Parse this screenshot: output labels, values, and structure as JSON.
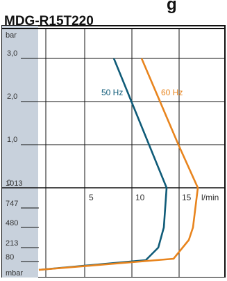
{
  "header": {
    "model_name": "MDG-R15T220",
    "partial_title_glyphs": "g "
  },
  "chart_data": {
    "type": "line",
    "title": "MDG-R15T220",
    "colors": {
      "frame": "#111111",
      "sidebar": "#c8d1dc",
      "grid": "#111111",
      "s50": "#0f5b78",
      "s60": "#e8841d"
    },
    "x_axis": {
      "unit": "l/min",
      "ticks": [
        "5",
        "10",
        "15"
      ],
      "range": [
        0,
        17.5
      ]
    },
    "pressure_axis": {
      "unit": "bar",
      "ticks": [
        "3,0",
        "2,0",
        "1,0",
        "0"
      ],
      "range": [
        0,
        3.0
      ]
    },
    "vacuum_axis": {
      "unit": "mbar",
      "ticks": [
        "1013",
        "747",
        "480",
        "213",
        "80"
      ]
    },
    "series": [
      {
        "name": "50 Hz",
        "pressure_points": [
          [
            7.5,
            3.0
          ],
          [
            13.5,
            0.0
          ]
        ],
        "vacuum_points": [
          [
            13.5,
            1013
          ],
          [
            13.2,
            747
          ],
          [
            12.9,
            480
          ],
          [
            12.3,
            213
          ],
          [
            11.2,
            80
          ],
          [
            0,
            0
          ]
        ]
      },
      {
        "name": "60 Hz",
        "pressure_points": [
          [
            10.5,
            3.0
          ],
          [
            13.0,
            1.0
          ],
          [
            16.0,
            0.0
          ]
        ],
        "vacuum_points": [
          [
            16.0,
            1013
          ],
          [
            15.6,
            747
          ],
          [
            15.3,
            480
          ],
          [
            14.9,
            300
          ],
          [
            13.0,
            80
          ],
          [
            0,
            0
          ]
        ]
      }
    ]
  }
}
